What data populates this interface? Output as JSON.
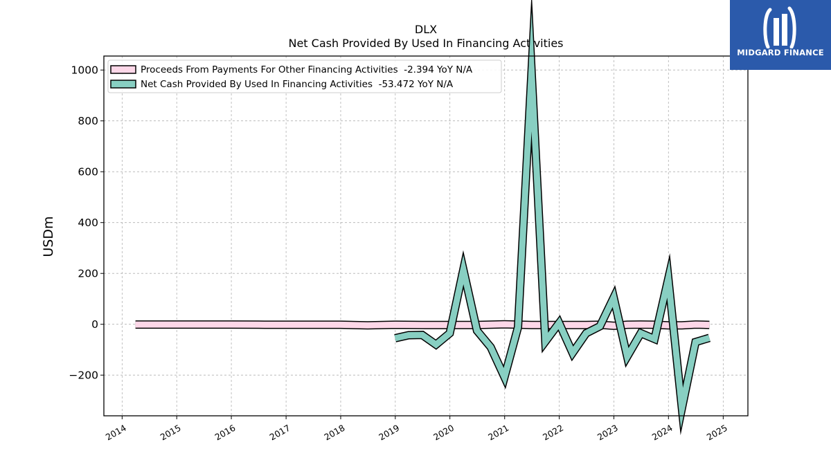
{
  "brand": {
    "name": "MIDGARD FINANCE",
    "bg_color": "#2b5aab"
  },
  "chart_data": {
    "type": "line",
    "title": "DLX",
    "subtitle": "Net Cash Provided By Used In Financing Activities",
    "ylabel": "USDm",
    "xlabel": "",
    "ylim": [
      -360,
      1055
    ],
    "xlim": [
      "2013-09-01",
      "2025-06-15"
    ],
    "grid": true,
    "legend_position": "top-left",
    "yticks": [
      -200,
      0,
      200,
      400,
      600,
      800,
      1000
    ],
    "ytick_labels": [
      "−200",
      "0",
      "200",
      "400",
      "600",
      "800",
      "1000"
    ],
    "xticks": [
      "2014-01-01",
      "2015-01-01",
      "2016-01-01",
      "2017-01-01",
      "2018-01-01",
      "2019-01-01",
      "2020-01-01",
      "2021-01-01",
      "2022-01-01",
      "2023-01-01",
      "2024-01-01",
      "2025-01-01"
    ],
    "xtick_labels": [
      "2014",
      "2015",
      "2016",
      "2017",
      "2018",
      "2019",
      "2020",
      "2021",
      "2022",
      "2023",
      "2024",
      "2025"
    ],
    "series": [
      {
        "name": "Proceeds From Payments For Other Financing Activities",
        "legend_label": "Proceeds From Payments For Other Financing Activities  -2.394 YoY N/A",
        "color": "#fdd7e8",
        "width": 9,
        "points": [
          [
            "2014-03-31",
            -1
          ],
          [
            "2014-12-31",
            -1
          ],
          [
            "2015-12-31",
            -1
          ],
          [
            "2016-06-30",
            -1.5
          ],
          [
            "2016-12-31",
            -2
          ],
          [
            "2017-12-31",
            -2
          ],
          [
            "2018-06-30",
            -4
          ],
          [
            "2018-12-31",
            -2
          ],
          [
            "2019-06-30",
            -3
          ],
          [
            "2020-06-30",
            -3
          ],
          [
            "2020-12-31",
            0
          ],
          [
            "2021-06-30",
            -3
          ],
          [
            "2021-12-31",
            -3
          ],
          [
            "2022-06-30",
            -3
          ],
          [
            "2022-09-30",
            -2
          ],
          [
            "2022-12-31",
            -6
          ],
          [
            "2023-03-31",
            -2
          ],
          [
            "2023-06-30",
            -1
          ],
          [
            "2023-09-30",
            -2
          ],
          [
            "2023-12-31",
            -4
          ],
          [
            "2024-03-31",
            -4
          ],
          [
            "2024-06-30",
            -1
          ],
          [
            "2024-09-30",
            -2.4
          ]
        ]
      },
      {
        "name": "Net Cash Provided By Used In Financing Activities",
        "legend_label": "Net Cash Provided By Used In Financing Activities  -53.472 YoY N/A",
        "color": "#88cfc2",
        "width": 9,
        "points": [
          [
            "2018-12-31",
            -55
          ],
          [
            "2019-03-31",
            -43
          ],
          [
            "2019-06-30",
            -42
          ],
          [
            "2019-09-30",
            -80
          ],
          [
            "2019-12-31",
            -35
          ],
          [
            "2020-03-31",
            215
          ],
          [
            "2020-06-30",
            -25
          ],
          [
            "2020-09-30",
            -90
          ],
          [
            "2020-12-31",
            -208
          ],
          [
            "2021-03-31",
            -12
          ],
          [
            "2021-06-30",
            995
          ],
          [
            "2021-09-30",
            -68
          ],
          [
            "2021-12-31",
            5
          ],
          [
            "2022-03-31",
            -113
          ],
          [
            "2022-06-30",
            -35
          ],
          [
            "2022-09-30",
            -8
          ],
          [
            "2022-12-31",
            105
          ],
          [
            "2023-03-31",
            -127
          ],
          [
            "2023-06-30",
            -35
          ],
          [
            "2023-09-30",
            -58
          ],
          [
            "2023-12-31",
            180
          ],
          [
            "2024-03-31",
            -330
          ],
          [
            "2024-06-30",
            -70
          ],
          [
            "2024-09-30",
            -53.5
          ]
        ]
      }
    ]
  }
}
